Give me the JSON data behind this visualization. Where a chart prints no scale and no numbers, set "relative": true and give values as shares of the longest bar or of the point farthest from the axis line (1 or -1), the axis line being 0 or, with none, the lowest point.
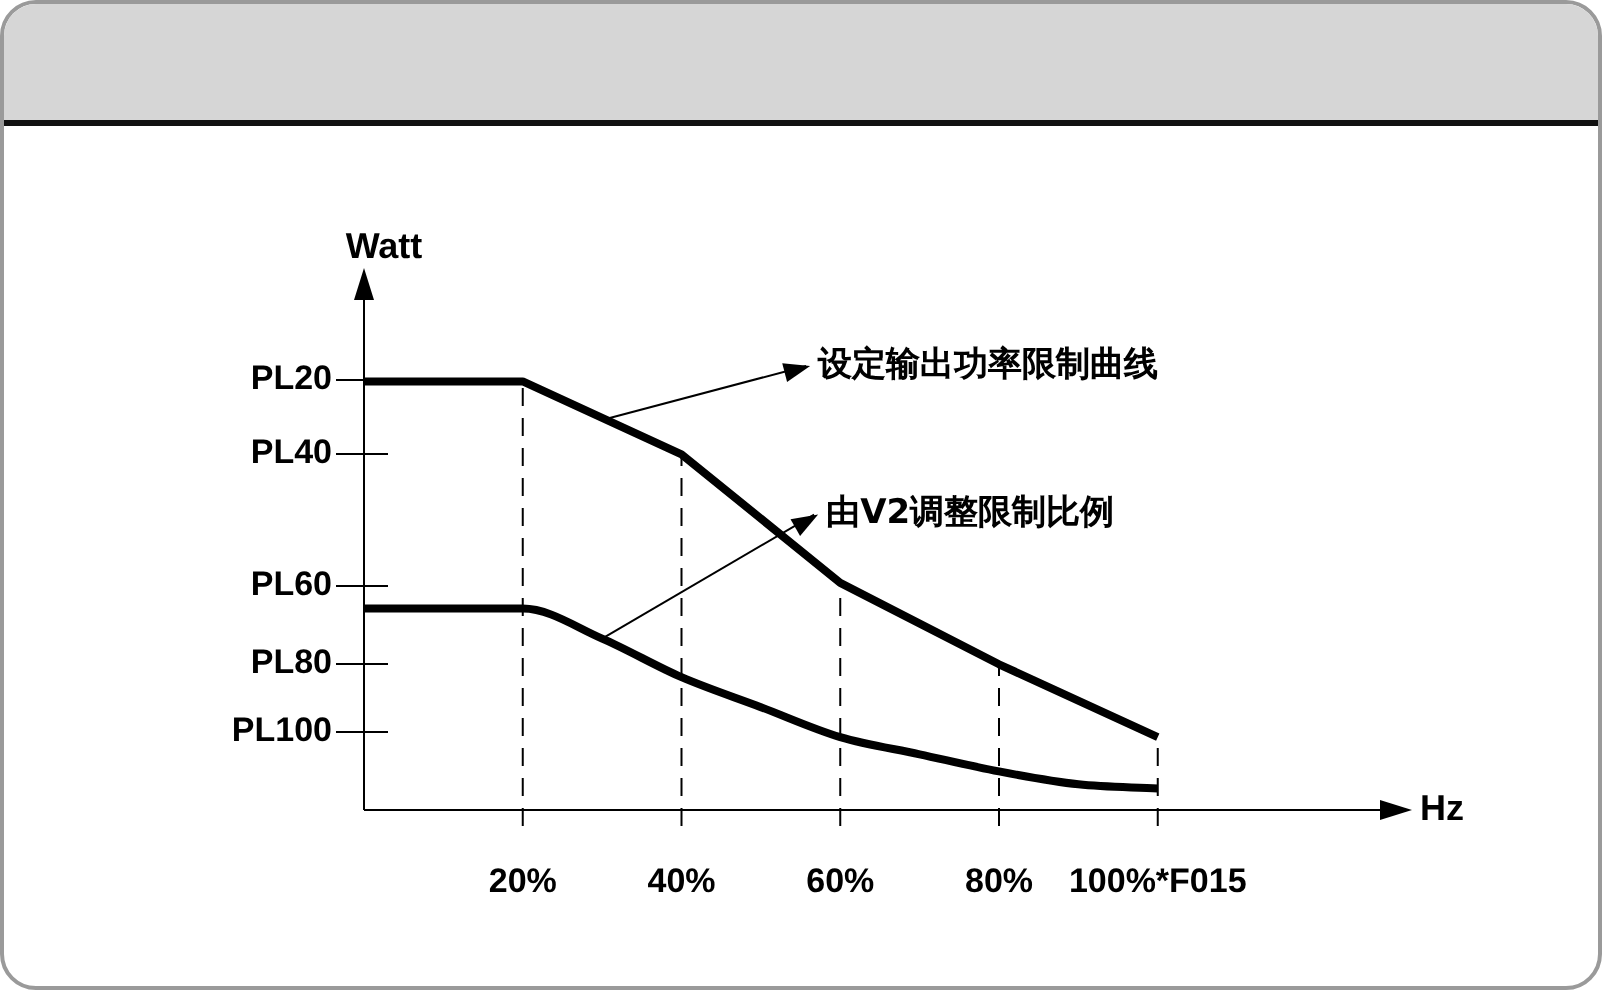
{
  "chart_data": {
    "type": "line",
    "relative": true,
    "xlabel": "Hz",
    "ylabel": "Watt",
    "xlim": [
      0,
      128
    ],
    "xticks": [
      {
        "value": 20,
        "label": "20%"
      },
      {
        "value": 40,
        "label": "40%"
      },
      {
        "value": 60,
        "label": "60%"
      },
      {
        "value": 80,
        "label": "80%"
      },
      {
        "value": 100,
        "label": "100%*F015"
      }
    ],
    "series": [
      {
        "color": "#000000",
        "x": [
          0,
          20,
          40,
          60,
          80,
          100
        ],
        "values": [
          1,
          1,
          0.83,
          0.53,
          0.34,
          0.17
        ]
      },
      {
        "color": "#000000",
        "x": [
          0,
          20,
          30,
          40,
          50,
          60,
          70,
          80,
          90,
          100
        ],
        "values": [
          0.47,
          0.47,
          0.4,
          0.31,
          0.24,
          0.17,
          0.13,
          0.09,
          0.06,
          0.05
        ]
      }
    ],
    "ref_lines": [
      {
        "axis": "x",
        "value": 20,
        "line_style": "dashed"
      },
      {
        "axis": "x",
        "value": 40,
        "line_style": "dashed"
      },
      {
        "axis": "x",
        "value": 60,
        "line_style": "dashed"
      },
      {
        "axis": "x",
        "value": 80,
        "line_style": "dashed"
      },
      {
        "axis": "x",
        "value": 100,
        "line_style": "dashed"
      }
    ],
    "annotations": [
      "PL20",
      "PL40",
      "PL60",
      "PL80",
      "PL100",
      {
        "text": "设定输出功率限制曲线",
        "x": 30,
        "y": 0.91
      },
      {
        "text": "由V2调整限制比例",
        "x": 30,
        "y": 0.4
      }
    ],
    "grid": false,
    "legend": false,
    "marker": "none",
    "line_style": "solid"
  }
}
